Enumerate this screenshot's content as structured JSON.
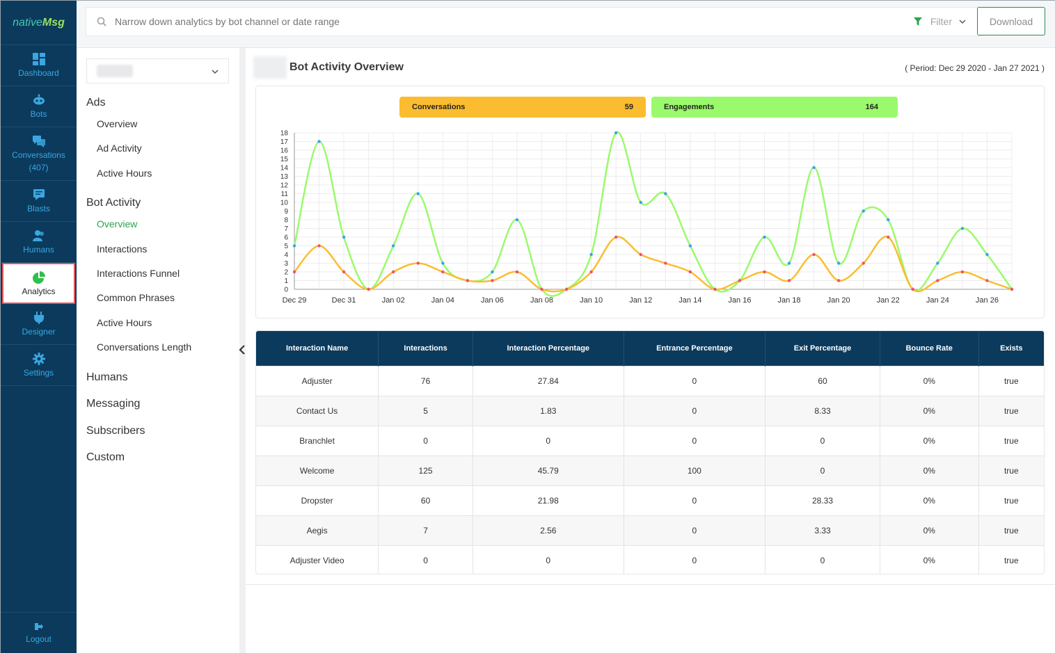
{
  "logo": {
    "part1": "native",
    "part2": "Msg"
  },
  "nav": {
    "items": [
      {
        "label": "Dashboard",
        "icon": "dashboard-icon"
      },
      {
        "label": "Bots",
        "icon": "bot-icon"
      },
      {
        "label": "Conversations",
        "sub": "(407)",
        "icon": "conversations-icon"
      },
      {
        "label": "Blasts",
        "icon": "blasts-icon"
      },
      {
        "label": "Humans",
        "icon": "humans-icon"
      },
      {
        "label": "Analytics",
        "icon": "pie-chart-icon",
        "active": true
      },
      {
        "label": "Designer",
        "icon": "plug-icon"
      },
      {
        "label": "Settings",
        "icon": "gear-icon"
      }
    ],
    "logout": "Logout"
  },
  "search": {
    "placeholder": "Narrow down analytics by bot channel or date range",
    "filter_label": "Filter"
  },
  "download_label": "Download",
  "submenu": {
    "ads": "Ads",
    "ads_items": [
      "Overview",
      "Ad Activity",
      "Active Hours"
    ],
    "bot_activity": "Bot Activity",
    "bot_items": [
      "Overview",
      "Interactions",
      "Interactions Funnel",
      "Common Phrases",
      "Active Hours",
      "Conversations Length"
    ],
    "humans": "Humans",
    "messaging": "Messaging",
    "subscribers": "Subscribers",
    "custom": "Custom"
  },
  "main": {
    "title": "Bot Activity Overview",
    "period": "( Period: Dec 29 2020 - Jan 27 2021 )",
    "conversations_label": "Conversations",
    "conversations_count": "59",
    "engagements_label": "Engagements",
    "engagements_count": "164"
  },
  "colors": {
    "conversations": "#fbbd2f",
    "engagements": "#9afa6b",
    "nav_bg": "#0b3a5c",
    "accent": "#2aa54b"
  },
  "chart_data": {
    "type": "line",
    "x": [
      "Dec 29",
      "Dec 30",
      "Dec 31",
      "Jan 01",
      "Jan 02",
      "Jan 03",
      "Jan 04",
      "Jan 05",
      "Jan 06",
      "Jan 07",
      "Jan 08",
      "Jan 09",
      "Jan 10",
      "Jan 11",
      "Jan 12",
      "Jan 13",
      "Jan 14",
      "Jan 15",
      "Jan 16",
      "Jan 17",
      "Jan 18",
      "Jan 19",
      "Jan 20",
      "Jan 21",
      "Jan 22",
      "Jan 23",
      "Jan 24",
      "Jan 25",
      "Jan 26",
      "Jan 27"
    ],
    "x_tick_labels": [
      "Dec 29",
      "Dec 31",
      "Jan 02",
      "Jan 04",
      "Jan 06",
      "Jan 08",
      "Jan 10",
      "Jan 12",
      "Jan 14",
      "Jan 16",
      "Jan 18",
      "Jan 20",
      "Jan 22",
      "Jan 24",
      "Jan 26"
    ],
    "y_ticks": [
      0,
      1,
      2,
      3,
      4,
      5,
      6,
      7,
      8,
      9,
      10,
      11,
      12,
      13,
      14,
      15,
      16,
      17,
      18
    ],
    "ylim": [
      0,
      18
    ],
    "grid": true,
    "series": [
      {
        "name": "Engagements",
        "color": "#9afa6b",
        "values": [
          5,
          17,
          6,
          0,
          5,
          11,
          3,
          1,
          2,
          8,
          0,
          0,
          4,
          18,
          10,
          11,
          5,
          0,
          1,
          6,
          3,
          14,
          3,
          9,
          8,
          0,
          3,
          7,
          4,
          0
        ]
      },
      {
        "name": "Conversations",
        "color": "#fbbd2f",
        "values": [
          2,
          5,
          2,
          0,
          2,
          3,
          2,
          1,
          1,
          2,
          0,
          0,
          2,
          6,
          4,
          3,
          2,
          0,
          1,
          2,
          1,
          4,
          1,
          3,
          6,
          0,
          1,
          2,
          1,
          0
        ]
      }
    ]
  },
  "table": {
    "headers": [
      "Interaction Name",
      "Interactions",
      "Interaction Percentage",
      "Entrance Percentage",
      "Exit Percentage",
      "Bounce Rate",
      "Exists"
    ],
    "rows": [
      [
        "Adjuster",
        "76",
        "27.84",
        "0",
        "60",
        "0%",
        "true"
      ],
      [
        "Contact Us",
        "5",
        "1.83",
        "0",
        "8.33",
        "0%",
        "true"
      ],
      [
        "Branchlet",
        "0",
        "0",
        "0",
        "0",
        "0%",
        "true"
      ],
      [
        "Welcome",
        "125",
        "45.79",
        "100",
        "0",
        "0%",
        "true"
      ],
      [
        "Dropster",
        "60",
        "21.98",
        "0",
        "28.33",
        "0%",
        "true"
      ],
      [
        "Aegis",
        "7",
        "2.56",
        "0",
        "3.33",
        "0%",
        "true"
      ],
      [
        "Adjuster Video",
        "0",
        "0",
        "0",
        "0",
        "0%",
        "true"
      ]
    ]
  }
}
